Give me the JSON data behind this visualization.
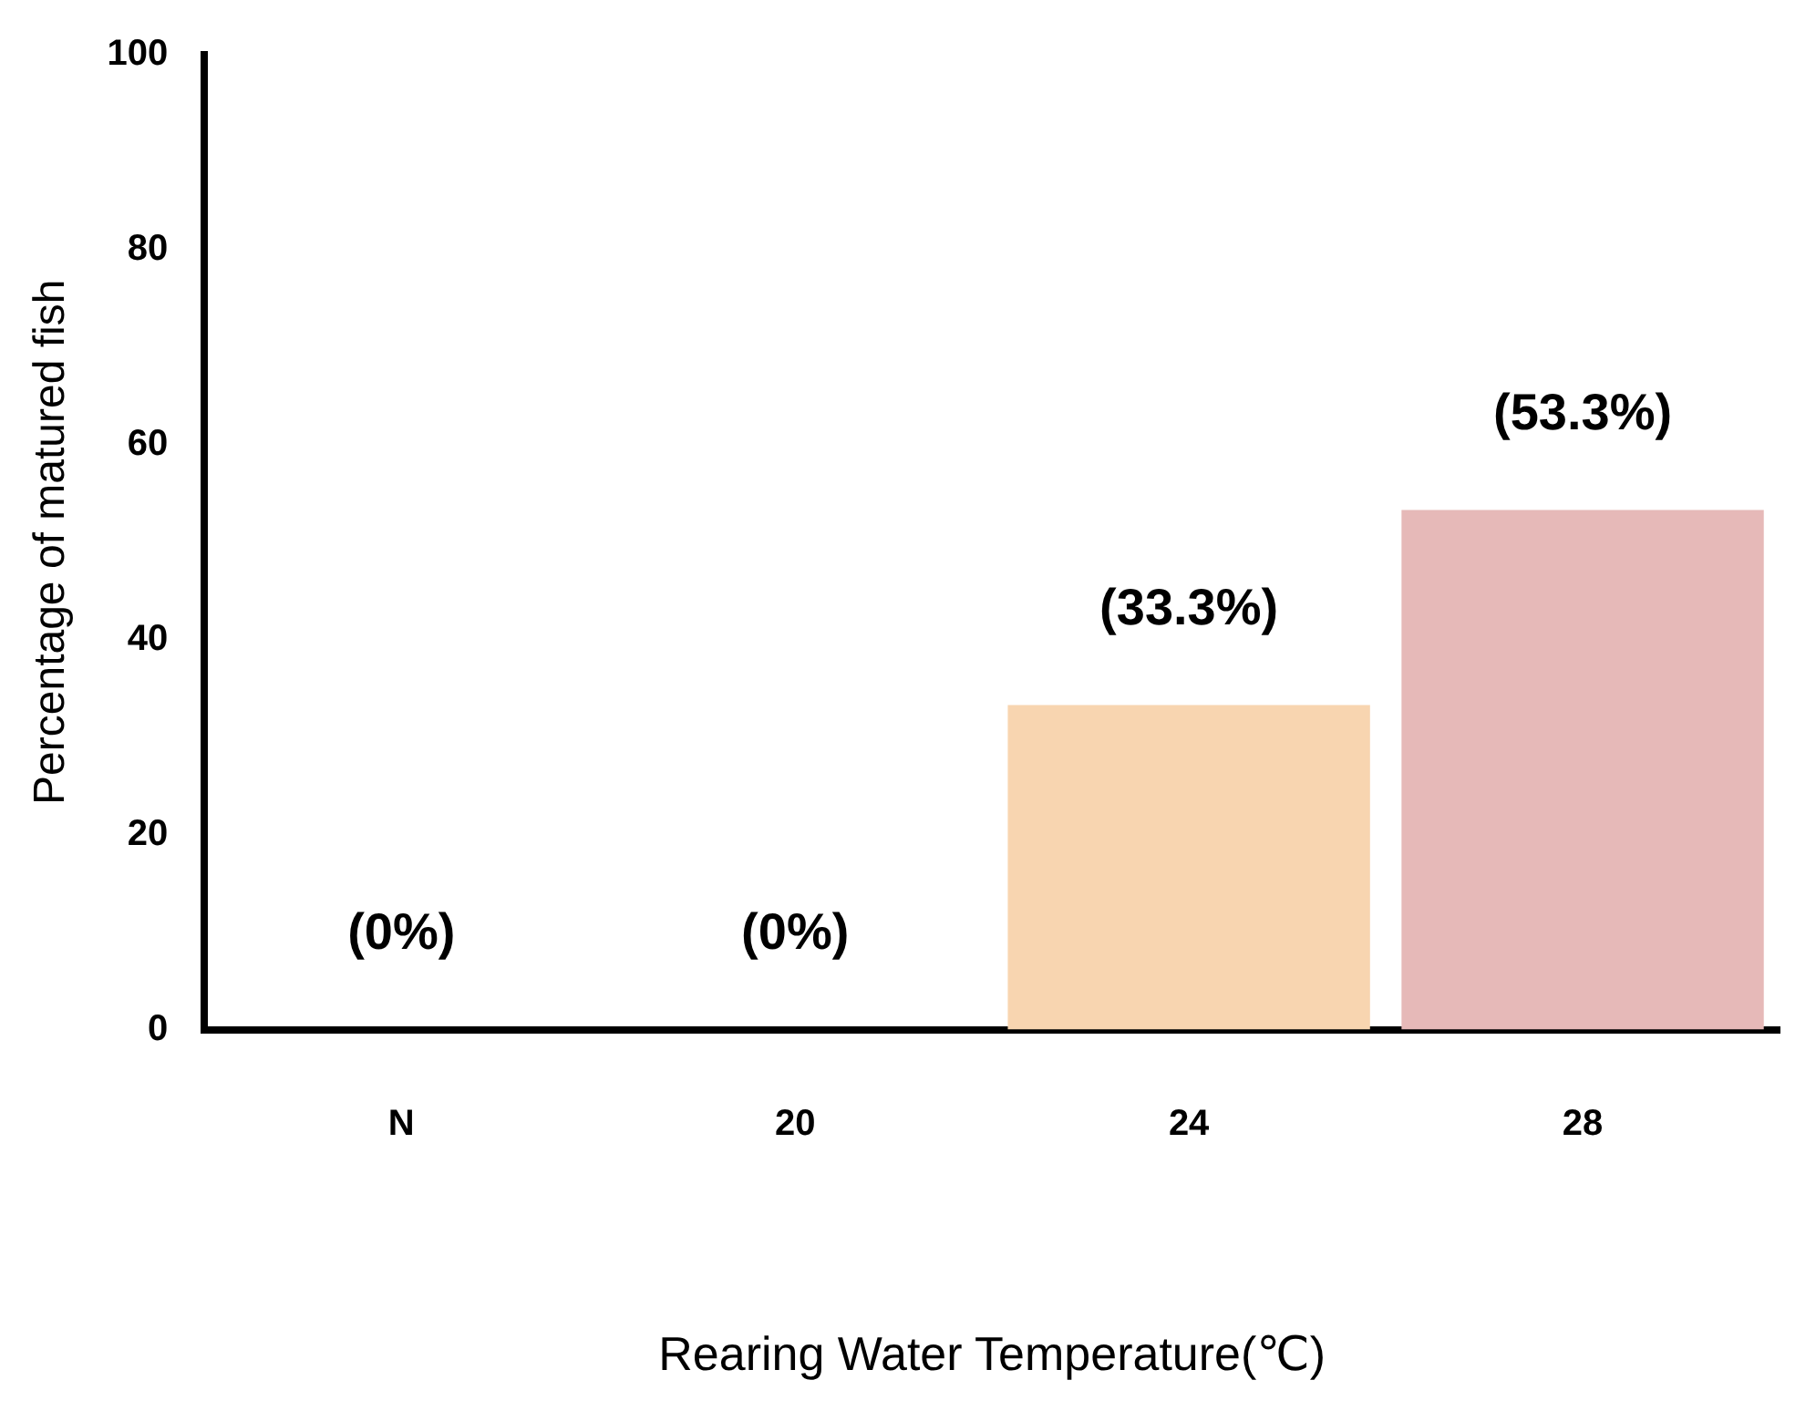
{
  "chart_data": {
    "type": "bar",
    "xlabel": "Rearing Water Temperature(℃)",
    "ylabel": "Percentage of matured fish",
    "categories": [
      "N",
      "20",
      "24",
      "28"
    ],
    "values": [
      0,
      0,
      33.3,
      53.3
    ],
    "colors": [
      "#f8d5b0",
      "#f8d5b0",
      "#f8d5b0",
      "#e6b9b8"
    ],
    "value_labels": [
      "(0%)",
      "(0%)",
      "(33.3%)",
      "(53.3%)"
    ],
    "ylim": [
      0,
      100
    ],
    "yticks": [
      0,
      20,
      40,
      60,
      80,
      100
    ],
    "grid": false,
    "legend": false
  }
}
